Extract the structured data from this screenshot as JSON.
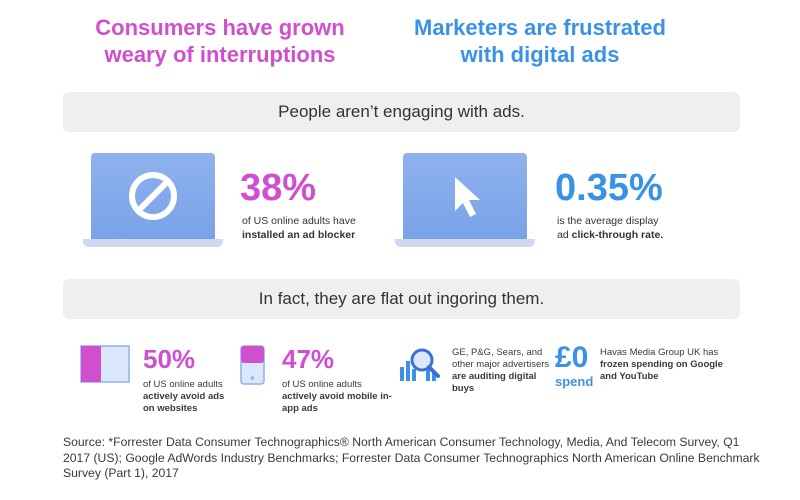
{
  "headings": {
    "left": "Consumers have grown weary of interruptions",
    "right": "Marketers are frustrated with digital ads"
  },
  "banners": {
    "first": "People aren’t engaging with ads.",
    "second": "In fact, they are flat out ingoring them."
  },
  "stats": {
    "ad_blocker": {
      "value": "38%",
      "text_plain": "of US online adults have",
      "text_bold": "installed an ad blocker",
      "icon": "block-icon"
    },
    "ctr": {
      "value": "0.35%",
      "text_plain": "is the average display",
      "text_plain2": "ad",
      "text_bold": "click-through rate.",
      "icon": "cursor-arrow-icon"
    },
    "avoid_websites": {
      "value": "50%",
      "text_plain": "of US online adults",
      "text_bold": "actively avoid ads on websites",
      "icon": "website-ad-icon"
    },
    "avoid_mobile": {
      "value": "47%",
      "text_plain": "of US online adults",
      "text_bold": "actively avoid mobile in-app ads",
      "icon": "mobile-ad-icon"
    },
    "auditing": {
      "text_plain": "GE, P&G, Sears, and other major advertisers",
      "text_bold": "are auditing digital buys",
      "icon": "magnifier-chart-icon"
    },
    "havas": {
      "value": "£0",
      "sub": "spend",
      "text_plain": "Havas Media Group UK has",
      "text_bold": "frozen spending on Google and YouTube"
    }
  },
  "source": "Source: *Forrester Data Consumer Technographics® North American Consumer Technology, Media, And Telecom Survey, Q1 2017 (US); Google AdWords Industry Benchmarks; Forrester Data Consumer Technographics North American Online Benchmark Survey (Part 1), 2017",
  "colors": {
    "pink": "#cf4fcf",
    "blue": "#3a92e6",
    "banner_bg": "#efefef",
    "laptop_screen": "#7aa2e8"
  }
}
